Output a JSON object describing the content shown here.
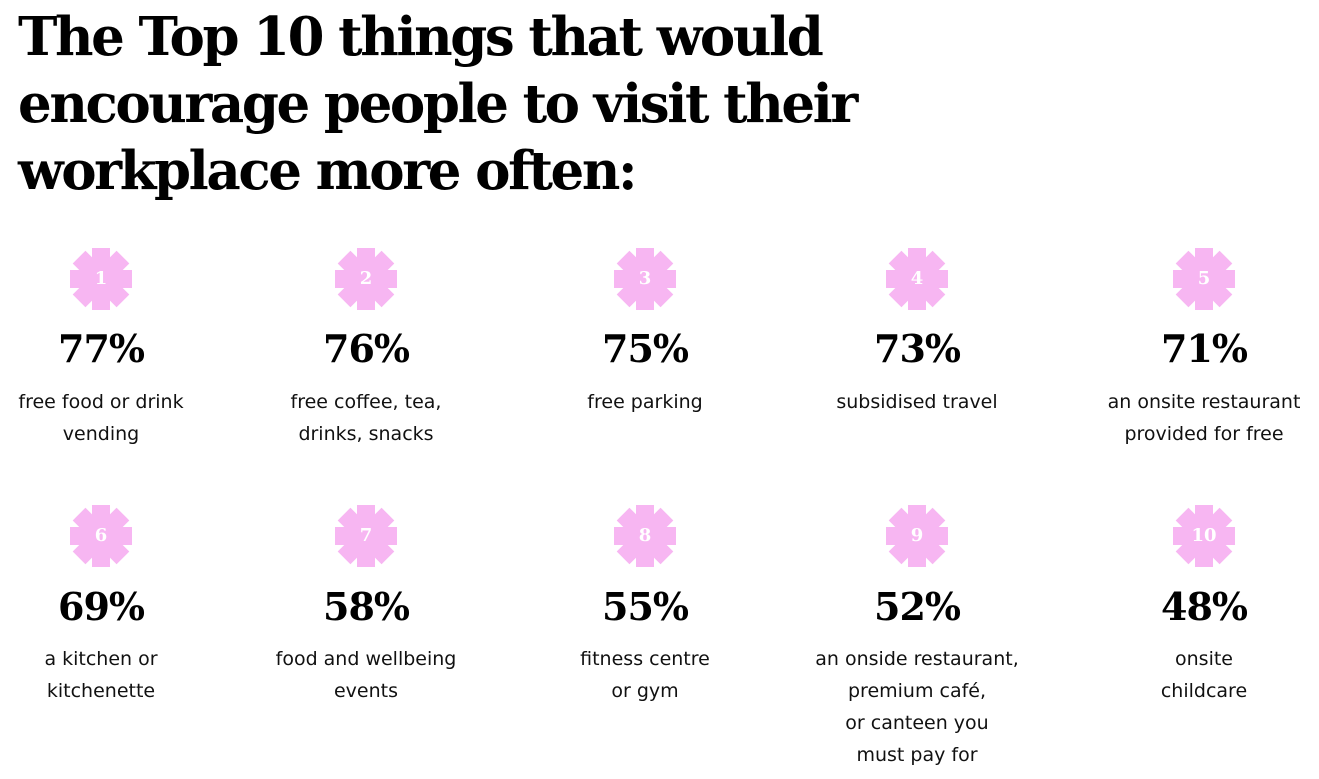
{
  "title_lines": [
    "The Top 10 things that would",
    "encourage people to visit their",
    "workplace more often:"
  ],
  "badge_color": "#F7B6F2",
  "badge_text_color": "#FFFFFF",
  "items": [
    {
      "rank": "1",
      "percent": "77%",
      "lines": [
        "free food or drink",
        "vending"
      ]
    },
    {
      "rank": "2",
      "percent": "76%",
      "lines": [
        "free coffee, tea,",
        "drinks, snacks"
      ]
    },
    {
      "rank": "3",
      "percent": "75%",
      "lines": [
        "free parking"
      ]
    },
    {
      "rank": "4",
      "percent": "73%",
      "lines": [
        "subsidised travel"
      ]
    },
    {
      "rank": "5",
      "percent": "71%",
      "lines": [
        "an onsite restaurant",
        "provided for free"
      ]
    },
    {
      "rank": "6",
      "percent": "69%",
      "lines": [
        "a kitchen or",
        "kitchenette"
      ]
    },
    {
      "rank": "7",
      "percent": "58%",
      "lines": [
        "food and wellbeing",
        "events"
      ]
    },
    {
      "rank": "8",
      "percent": "55%",
      "lines": [
        "fitness centre",
        "or gym"
      ]
    },
    {
      "rank": "9",
      "percent": "52%",
      "lines": [
        "an onside restaurant,",
        "premium café,",
        "or canteen you",
        "must pay for"
      ]
    },
    {
      "rank": "10",
      "percent": "48%",
      "lines": [
        "onsite",
        "childcare"
      ]
    }
  ]
}
